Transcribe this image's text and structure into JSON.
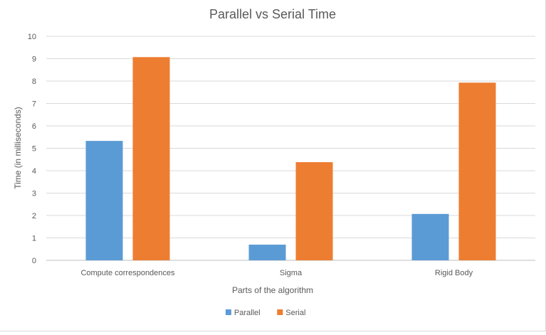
{
  "chart_data": {
    "type": "bar",
    "title": "Parallel vs Serial Time",
    "xlabel": "Parts of the algorithm",
    "ylabel": "Time (in milliseconds)",
    "ylim": [
      0,
      10
    ],
    "yticks": [
      0,
      1,
      2,
      3,
      4,
      5,
      6,
      7,
      8,
      9,
      10
    ],
    "categories": [
      "Compute correspondences",
      "Sigma",
      "Rigid Body"
    ],
    "series": [
      {
        "name": "Parallel",
        "color": "#5b9bd5",
        "values": [
          5.33,
          0.7,
          2.07
        ]
      },
      {
        "name": "Serial",
        "color": "#ed7d31",
        "values": [
          9.07,
          4.38,
          7.93
        ]
      }
    ],
    "grid": true,
    "legend_position": "bottom"
  }
}
